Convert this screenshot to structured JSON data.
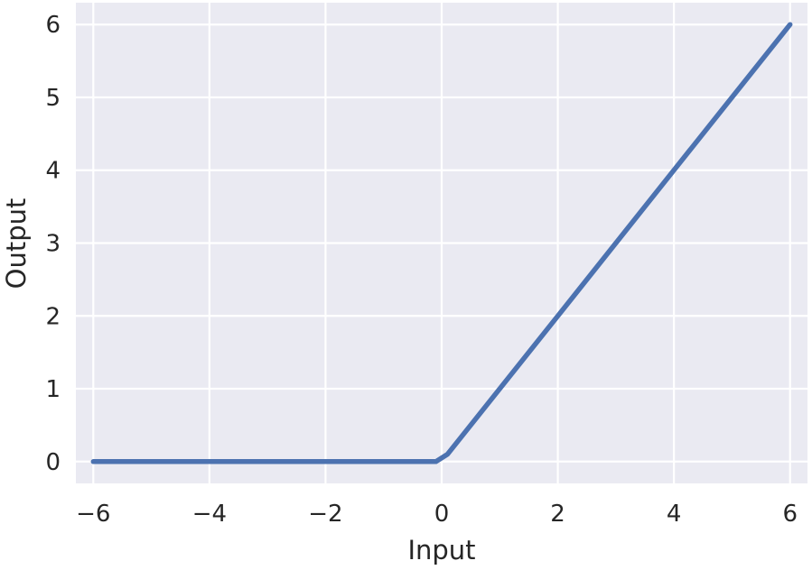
{
  "chart_data": {
    "type": "line",
    "title": "",
    "xlabel": "Input",
    "ylabel": "Output",
    "xlim": [
      -6.3,
      6.3
    ],
    "ylim": [
      -0.3,
      6.3
    ],
    "xticks": [
      -6,
      -4,
      -2,
      0,
      2,
      4,
      6
    ],
    "xtick_labels": [
      "−6",
      "−4",
      "−2",
      "0",
      "2",
      "4",
      "6"
    ],
    "yticks": [
      0,
      1,
      2,
      3,
      4,
      5,
      6
    ],
    "ytick_labels": [
      "0",
      "1",
      "2",
      "3",
      "4",
      "5",
      "6"
    ],
    "grid": true,
    "legend": "none",
    "series": [
      {
        "x": [
          -6,
          -4,
          -2,
          -0.1,
          0.1,
          2,
          4,
          6
        ],
        "y": [
          0,
          0,
          0,
          0,
          0.1,
          2,
          4,
          6
        ]
      }
    ],
    "colors": {
      "background": "#eaeaf2",
      "grid": "#ffffff",
      "line": "#4c72b0",
      "text": "#262626"
    }
  }
}
